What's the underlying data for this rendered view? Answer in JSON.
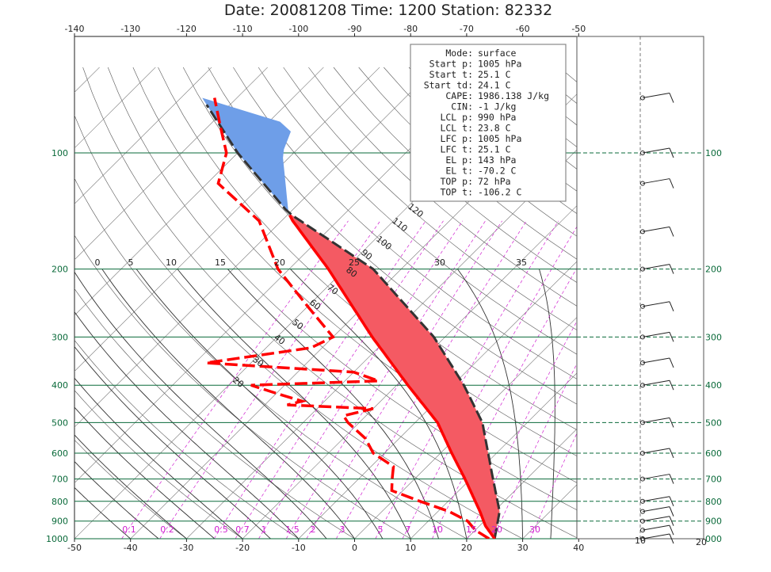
{
  "chart_data": {
    "type": "skew-t",
    "title": "Date: 20081208 Time: 1200 Station: 82332",
    "top_axis_ticks": [
      "-140",
      "-130",
      "-120",
      "-110",
      "-100",
      "-90",
      "-80",
      "-70",
      "-60",
      "-50"
    ],
    "bottom_axis_ticks": [
      "-50",
      "-40",
      "-30",
      "-20",
      "-10",
      "0",
      "10",
      "20",
      "30",
      "40"
    ],
    "pressure_ticks": [
      "100",
      "200",
      "300",
      "400",
      "500",
      "600",
      "700",
      "800",
      "900",
      "1000"
    ],
    "right_pressure_ticks": [
      "100",
      "200",
      "300",
      "400",
      "500",
      "600",
      "700",
      "800",
      "900",
      "000"
    ],
    "mixing_ratio_labels": [
      "0.1",
      "0.2",
      "0.5",
      "0.7",
      "1",
      "1.5",
      "2",
      "3",
      "5",
      "7",
      "10",
      "15",
      "20",
      "30"
    ],
    "dry_adiabat_labels": [
      "20",
      "30",
      "40",
      "50",
      "60",
      "70",
      "80",
      "90",
      "100",
      "110",
      "120"
    ],
    "moist_adiabat_labels": [
      "0",
      "5",
      "10",
      "15",
      "20",
      "25",
      "30",
      "35"
    ],
    "wind_axis_labels": [
      "10",
      "20"
    ],
    "colors": {
      "temperature": "#ff0000",
      "cape": "#f45a63",
      "cin": "#6e9ee8",
      "parcel": "#333333",
      "isobar": "#0a6a3a",
      "mixing": "#d020d0"
    },
    "info_box": [
      {
        "label": "Mode:",
        "value": "surface"
      },
      {
        "label": "Start p:",
        "value": "1005 hPa"
      },
      {
        "label": "Start t:",
        "value": "25.1 C"
      },
      {
        "label": "Start td:",
        "value": "24.1 C"
      },
      {
        "label": "CAPE:",
        "value": "1986.138 J/kg"
      },
      {
        "label": "CIN:",
        "value": "-1 J/kg"
      },
      {
        "label": "LCL p:",
        "value": "990 hPa"
      },
      {
        "label": "LCL t:",
        "value": "23.8 C"
      },
      {
        "label": "LFC p:",
        "value": "1005 hPa"
      },
      {
        "label": "LFC t:",
        "value": "25.1 C"
      },
      {
        "label": "EL p:",
        "value": "143 hPa"
      },
      {
        "label": "EL t:",
        "value": "-70.2 C"
      },
      {
        "label": "TOP p:",
        "value": "72 hPa"
      },
      {
        "label": "TOP t:",
        "value": "-106.2 C"
      }
    ],
    "temperature_profile": [
      {
        "p": 1000,
        "t": 25
      },
      {
        "p": 925,
        "t": 21
      },
      {
        "p": 850,
        "t": 17.5
      },
      {
        "p": 700,
        "t": 9
      },
      {
        "p": 600,
        "t": 2
      },
      {
        "p": 500,
        "t": -6
      },
      {
        "p": 400,
        "t": -18
      },
      {
        "p": 300,
        "t": -33
      },
      {
        "p": 250,
        "t": -42
      },
      {
        "p": 200,
        "t": -53
      },
      {
        "p": 150,
        "t": -68
      },
      {
        "p": 143,
        "t": -70.2
      },
      {
        "p": 100,
        "t": -82
      },
      {
        "p": 85,
        "t": -85
      },
      {
        "p": 72,
        "t": -106.2
      }
    ],
    "parcel_profile": [
      {
        "p": 1000,
        "t": 25
      },
      {
        "p": 850,
        "t": 21
      },
      {
        "p": 700,
        "t": 14
      },
      {
        "p": 500,
        "t": 2
      },
      {
        "p": 400,
        "t": -8
      },
      {
        "p": 300,
        "t": -22
      },
      {
        "p": 200,
        "t": -45
      },
      {
        "p": 143,
        "t": -70.2
      },
      {
        "p": 100,
        "t": -90
      },
      {
        "p": 72,
        "t": -106.2
      }
    ]
  }
}
